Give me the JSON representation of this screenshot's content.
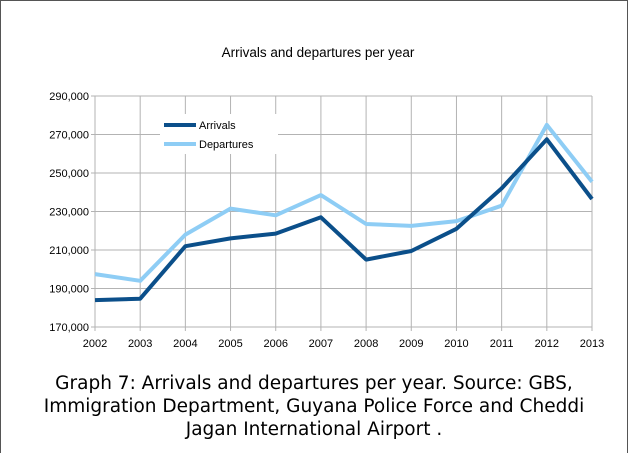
{
  "chart_data": {
    "type": "line",
    "title": "Arrivals and departures per year",
    "xlabel": "",
    "ylabel": "",
    "categories": [
      "2002",
      "2003",
      "2004",
      "2005",
      "2006",
      "2007",
      "2008",
      "2009",
      "2010",
      "2011",
      "2012",
      "2013"
    ],
    "ylim": [
      170000,
      290000
    ],
    "yticks": [
      170000,
      190000,
      210000,
      230000,
      250000,
      270000,
      290000
    ],
    "ytick_labels": [
      "170,000",
      "190,000",
      "210,000",
      "230,000",
      "250,000",
      "270,000",
      "290,000"
    ],
    "grid": true,
    "legend_position": "top-left",
    "series": [
      {
        "name": "Arrivals",
        "color": "#0b4f8a",
        "values": [
          184000,
          184700,
          212000,
          216000,
          218500,
          227000,
          205000,
          209500,
          221000,
          242000,
          267500,
          236500
        ]
      },
      {
        "name": "Departures",
        "color": "#8ecdf5",
        "values": [
          197500,
          194000,
          218000,
          231500,
          228000,
          238500,
          223500,
          222500,
          225000,
          233000,
          275000,
          245500
        ]
      }
    ]
  },
  "caption": {
    "line1": "Graph 7:  Arrivals and departures per year. Source: GBS,",
    "line2": "Immigration Department, Guyana Police Force and Cheddi",
    "line3": "Jagan International Airport ."
  }
}
